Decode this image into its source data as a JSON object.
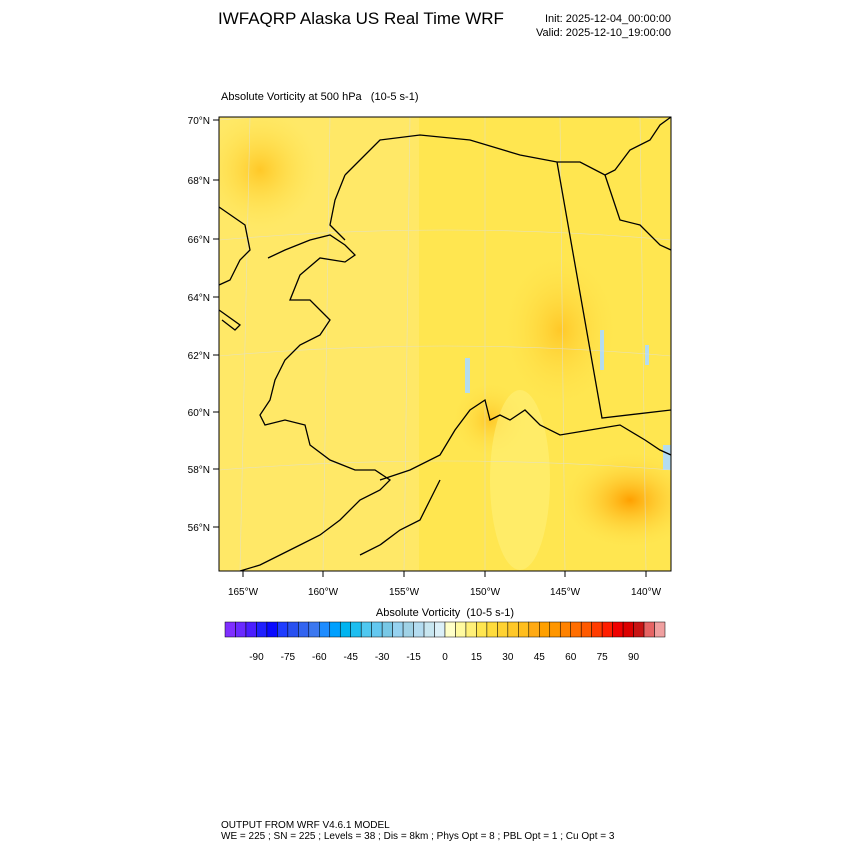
{
  "header": {
    "title": "IWFAQRP Alaska US Real Time WRF",
    "init": "Init: 2025-12-04_00:00:00",
    "valid": "Valid: 2025-12-10_19:00:00"
  },
  "map": {
    "title": "Absolute Vorticity at 500 hPa   (10-5 s-1)",
    "lat_labels": [
      "70°N",
      "68°N",
      "66°N",
      "64°N",
      "62°N",
      "60°N",
      "58°N",
      "56°N"
    ],
    "lon_labels": [
      "165°W",
      "160°W",
      "155°W",
      "150°W",
      "145°W",
      "140°W"
    ]
  },
  "colorbar": {
    "title": "Absolute Vorticity  (10-5 s-1)",
    "labels": [
      -90,
      -75,
      -60,
      -45,
      -30,
      -15,
      0,
      15,
      30,
      45,
      60,
      75,
      90
    ],
    "colors": [
      "#7f2fff",
      "#6a2aff",
      "#4b1eff",
      "#2020ff",
      "#0a0aff",
      "#1e3cff",
      "#2850f0",
      "#3264f0",
      "#3c78f0",
      "#1e8cff",
      "#00a0ff",
      "#00b4f0",
      "#1ebef0",
      "#50c8f0",
      "#64c8f0",
      "#78c8e6",
      "#96d2f0",
      "#a0d2e6",
      "#b4dcf0",
      "#c8e6f0",
      "#dcf0f8",
      "#ffffc8",
      "#fffaa0",
      "#fff078",
      "#ffe650",
      "#ffdc3c",
      "#ffd232",
      "#ffc828",
      "#ffbe1e",
      "#ffaa14",
      "#ffa000",
      "#ff9600",
      "#ff8200",
      "#ff6e00",
      "#ff5a00",
      "#ff3c00",
      "#ff1e00",
      "#f00000",
      "#dc0000",
      "#c81414",
      "#e66464",
      "#f0a0a0"
    ]
  },
  "footer": {
    "line1": "OUTPUT FROM WRF V4.6.1 MODEL",
    "line2": "WE = 225 ; SN = 225 ; Levels = 38 ; Dis = 8km ; Phys Opt = 8 ; PBL Opt = 1 ; Cu Opt = 3"
  }
}
